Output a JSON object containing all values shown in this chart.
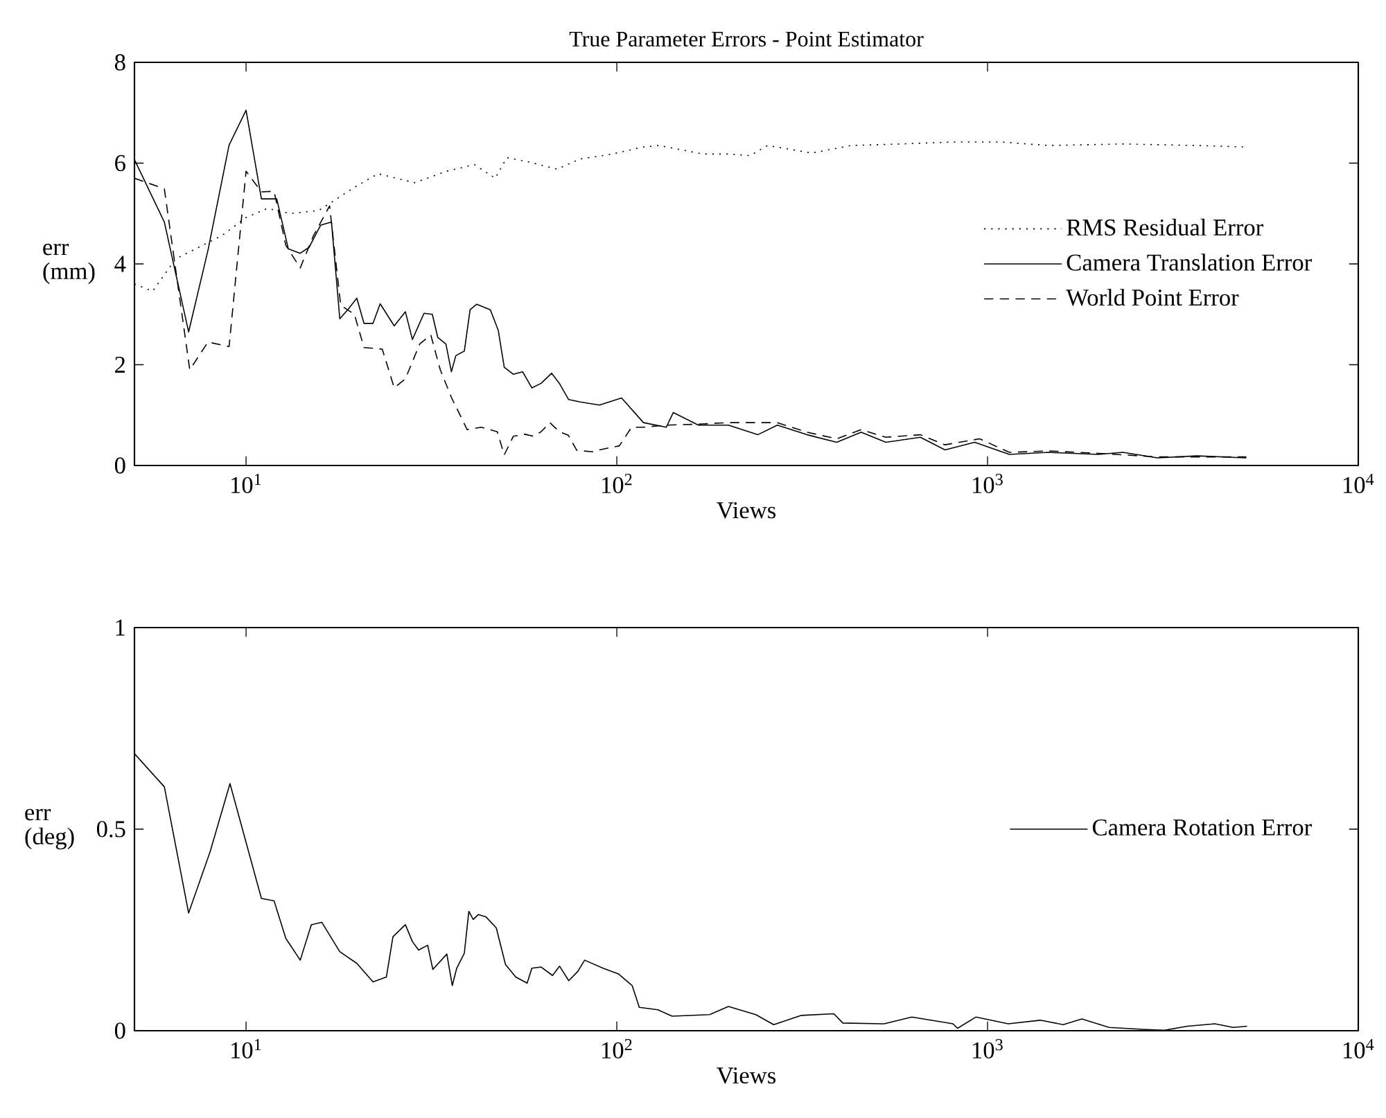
{
  "chart_data": [
    {
      "type": "line",
      "title": "True Parameter Errors - Point Estimator",
      "xlabel": "Views",
      "ylabel": "err (mm)",
      "log": "x",
      "legend": "right",
      "xlim": [
        5,
        10000
      ],
      "xticks": [
        {
          "value": 10,
          "label": "10$^{1}$"
        },
        {
          "value": 100,
          "label": "10$^{2}$"
        },
        {
          "value": 1000,
          "label": "10$^{3}$"
        },
        {
          "value": 10000,
          "label": "10$^{4}$"
        }
      ],
      "ylim": [
        0,
        8
      ],
      "yticks": [
        0,
        2,
        4,
        6,
        8
      ],
      "series": [
        {
          "name": "RMS Residual Error",
          "color": "#000000",
          "line_style": "dotted",
          "x": [
            5,
            5.6,
            6.46,
            7.45,
            8.6,
            10,
            11.4,
            13.2,
            15.7,
            16.8,
            19.6,
            22.7,
            28.5,
            34.8,
            41.3,
            47,
            50.5,
            58.2,
            69,
            79.4,
            95.5,
            118,
            130,
            171,
            200,
            229,
            255,
            336,
            429,
            583,
            817,
            1078,
            1463,
            2317,
            3672,
            4990
          ],
          "values": [
            3.6,
            3.46,
            4.1,
            4.33,
            4.56,
            4.92,
            5.1,
            5.0,
            5.06,
            5.2,
            5.52,
            5.79,
            5.61,
            5.84,
            5.97,
            5.7,
            6.11,
            6.02,
            5.88,
            6.08,
            6.17,
            6.32,
            6.35,
            6.18,
            6.18,
            6.15,
            6.35,
            6.2,
            6.35,
            6.38,
            6.42,
            6.42,
            6.35,
            6.38,
            6.35,
            6.32
          ]
        },
        {
          "name": "Camera Translation Error",
          "color": "#000000",
          "line_style": "solid",
          "x": [
            5,
            6.02,
            7,
            7.9,
            9,
            10,
            11,
            12.1,
            13,
            14,
            14.8,
            15.9,
            17,
            17.9,
            18.8,
            19.9,
            20.8,
            22,
            23,
            25.1,
            26.9,
            28.1,
            30.2,
            31.8,
            32.9,
            34.6,
            35.8,
            36.8,
            38.8,
            40.2,
            41.9,
            45.6,
            47.9,
            49.7,
            52.6,
            55.7,
            59,
            62.5,
            66.7,
            70,
            74.1,
            79.6,
            89.8,
            103,
            118,
            136,
            142,
            166,
            200,
            240,
            271,
            326,
            392,
            456,
            532,
            659,
            768,
            923,
            1145,
            1463,
            1987,
            2317,
            2871,
            3672,
            4990
          ],
          "values": [
            6.07,
            4.83,
            2.65,
            4.28,
            6.36,
            7.05,
            5.29,
            5.29,
            4.3,
            4.21,
            4.33,
            4.77,
            4.83,
            2.91,
            3.09,
            3.32,
            2.82,
            2.82,
            3.21,
            2.77,
            3.05,
            2.5,
            3.02,
            3.0,
            2.54,
            2.41,
            1.86,
            2.18,
            2.27,
            3.09,
            3.2,
            3.09,
            2.68,
            1.95,
            1.81,
            1.86,
            1.54,
            1.63,
            1.83,
            1.63,
            1.31,
            1.26,
            1.2,
            1.34,
            0.85,
            0.76,
            1.05,
            0.8,
            0.8,
            0.61,
            0.8,
            0.61,
            0.46,
            0.66,
            0.46,
            0.56,
            0.31,
            0.46,
            0.22,
            0.26,
            0.22,
            0.26,
            0.15,
            0.19,
            0.15
          ]
        },
        {
          "name": "World Point Error",
          "color": "#000000",
          "line_style": "dashed",
          "x": [
            5,
            6.02,
            7.05,
            7.9,
            9,
            10,
            11,
            11.9,
            12.8,
            14,
            15.2,
            16.8,
            18,
            19.6,
            20.8,
            23.3,
            25.1,
            26.9,
            29.4,
            31.5,
            33.4,
            35.8,
            39.5,
            43.1,
            47.6,
            49.7,
            52.6,
            56.5,
            59.6,
            62.5,
            66,
            70,
            74,
            78,
            86.7,
            89.8,
            101.6,
            109.6,
            118,
            136,
            166,
            200,
            271,
            326,
            392,
            456,
            532,
            659,
            768,
            952,
            1145,
            1463,
            1987,
            2871,
            4990
          ],
          "values": [
            5.7,
            5.49,
            1.9,
            2.45,
            2.36,
            5.84,
            5.43,
            5.44,
            4.37,
            3.92,
            4.56,
            5.15,
            3.18,
            3.0,
            2.34,
            2.31,
            1.54,
            1.72,
            2.41,
            2.59,
            1.9,
            1.35,
            0.71,
            0.76,
            0.67,
            0.21,
            0.58,
            0.62,
            0.58,
            0.67,
            0.85,
            0.67,
            0.6,
            0.3,
            0.27,
            0.31,
            0.39,
            0.76,
            0.76,
            0.8,
            0.82,
            0.85,
            0.85,
            0.66,
            0.53,
            0.71,
            0.56,
            0.61,
            0.41,
            0.53,
            0.26,
            0.29,
            0.24,
            0.17,
            0.17
          ]
        }
      ]
    },
    {
      "type": "line",
      "xlabel": "Views",
      "ylabel": "err (deg)",
      "log": "x",
      "legend": "right",
      "xlim": [
        5,
        10000
      ],
      "xticks": [
        {
          "value": 10,
          "label": "10$^{1}$"
        },
        {
          "value": 100,
          "label": "10$^{2}$"
        },
        {
          "value": 1000,
          "label": "10$^{3}$"
        },
        {
          "value": 10000,
          "label": "10$^{4}$"
        }
      ],
      "ylim": [
        0,
        1
      ],
      "yticks": [
        0,
        0.5,
        1
      ],
      "series": [
        {
          "name": "Camera Rotation Error",
          "color": "#000000",
          "line_style": "solid",
          "x": [
            5,
            6.02,
            7,
            8,
            9.05,
            11,
            11.9,
            12.8,
            14,
            15,
            16,
            17.9,
            19.9,
            22,
            23.9,
            24.9,
            26.9,
            28.1,
            29.2,
            30.9,
            31.9,
            34.8,
            36,
            37,
            38.8,
            39.9,
            41,
            42.3,
            44.4,
            47.3,
            50.1,
            53.4,
            57.3,
            59,
            62.5,
            67.1,
            70.1,
            74.2,
            78.5,
            81.9,
            91.8,
            101,
            110,
            115,
            129,
            141,
            178,
            200,
            237,
            265,
            315,
            385,
            407,
            526,
            625,
            807,
            830,
            931,
            1137,
            1388,
            1600,
            1796,
            2128,
            2678,
            3000,
            3460,
            4104,
            4600,
            5012
          ],
          "values": [
            0.687,
            0.605,
            0.292,
            0.444,
            0.613,
            0.328,
            0.322,
            0.229,
            0.175,
            0.263,
            0.269,
            0.196,
            0.167,
            0.121,
            0.133,
            0.233,
            0.263,
            0.221,
            0.2,
            0.212,
            0.152,
            0.19,
            0.112,
            0.155,
            0.192,
            0.296,
            0.276,
            0.288,
            0.282,
            0.255,
            0.164,
            0.133,
            0.118,
            0.155,
            0.158,
            0.137,
            0.16,
            0.124,
            0.147,
            0.175,
            0.155,
            0.141,
            0.112,
            0.058,
            0.052,
            0.036,
            0.04,
            0.06,
            0.04,
            0.015,
            0.038,
            0.042,
            0.019,
            0.017,
            0.034,
            0.017,
            0.006,
            0.034,
            0.017,
            0.026,
            0.015,
            0.029,
            0.008,
            0.003,
            0.001,
            0.011,
            0.017,
            0.008,
            0.011
          ]
        }
      ]
    }
  ]
}
